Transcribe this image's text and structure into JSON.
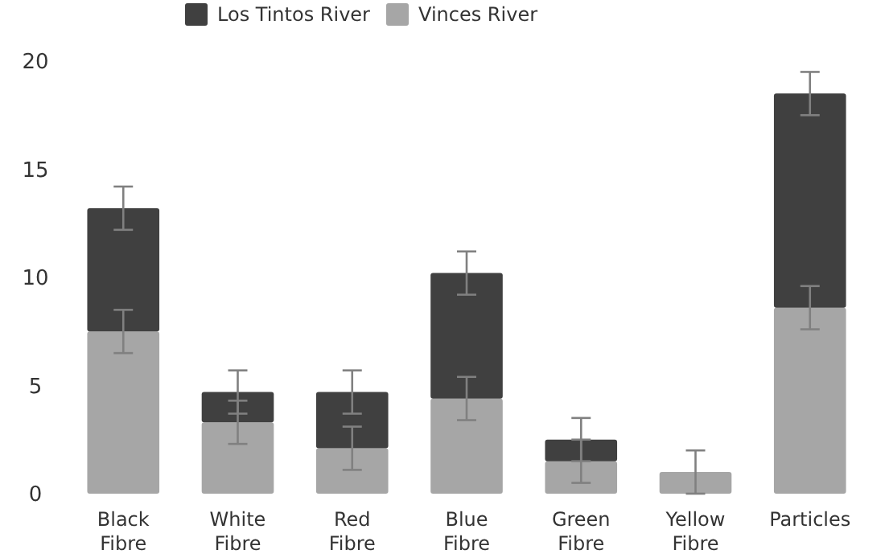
{
  "chart_data": {
    "type": "bar",
    "stacked": true,
    "categories": [
      "Black Fibre",
      "White Fibre",
      "Red Fibre",
      "Blue Fibre",
      "Green Fibre",
      "Yellow Fibre",
      "Particles"
    ],
    "series": [
      {
        "name": "Vinces River",
        "color": "#a6a6a6",
        "values": [
          7.5,
          3.3,
          2.1,
          4.4,
          1.5,
          1.0,
          8.6
        ],
        "errors": [
          1,
          1,
          1,
          1,
          1,
          1,
          1
        ]
      },
      {
        "name": "Los Tintos River",
        "color": "#404040",
        "values": [
          5.7,
          1.4,
          2.6,
          5.8,
          1.0,
          0,
          9.9
        ],
        "errors": [
          1,
          1,
          1,
          1,
          1,
          null,
          1
        ]
      }
    ],
    "ylim": [
      0,
      20
    ],
    "yticks": [
      0,
      5,
      10,
      15,
      20
    ],
    "grid": false,
    "legend": "top"
  }
}
